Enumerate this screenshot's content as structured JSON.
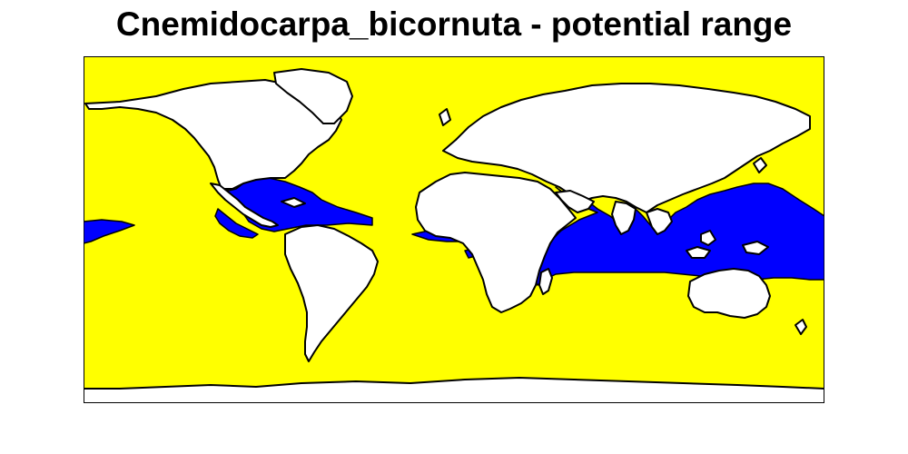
{
  "title": "Cnemidocarpa_bicornuta - potential range",
  "colors": {
    "ocean": "#ffff00",
    "potential_range": "#0000ff",
    "land": "#ffffff",
    "outline": "#000000"
  }
}
